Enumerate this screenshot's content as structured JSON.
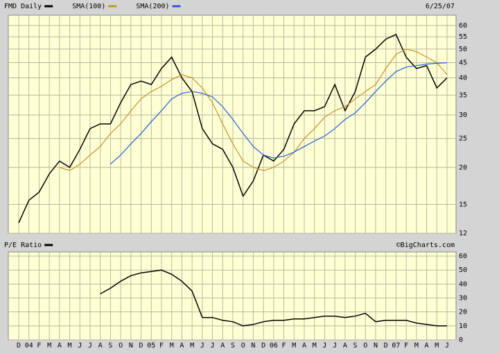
{
  "chart_data": [
    {
      "type": "line",
      "log_scale": true,
      "grid": true,
      "date": "6/25/07",
      "categories": [
        "D",
        "04",
        "F",
        "M",
        "A",
        "M",
        "J",
        "J",
        "A",
        "S",
        "O",
        "N",
        "D",
        "05",
        "F",
        "M",
        "A",
        "M",
        "J",
        "J",
        "A",
        "S",
        "O",
        "N",
        "D",
        "06",
        "F",
        "M",
        "A",
        "M",
        "J",
        "J",
        "A",
        "S",
        "O",
        "N",
        "D",
        "07",
        "F",
        "M",
        "A",
        "M",
        "J"
      ],
      "series": [
        {
          "name": "FMD Daily",
          "color": "#000000",
          "values": [
            13,
            15.5,
            16.5,
            19,
            21,
            20,
            23,
            27,
            28,
            28,
            33,
            38,
            39,
            38,
            43,
            47,
            40,
            36,
            27,
            24,
            23,
            20,
            16,
            18,
            22,
            21,
            23,
            28,
            31,
            31,
            32,
            38,
            31,
            36,
            47,
            50,
            54,
            56,
            47,
            43,
            44,
            37,
            40
          ]
        },
        {
          "name": "SMA(100)",
          "color": "#c8902c",
          "values": [
            null,
            null,
            null,
            null,
            20,
            19.5,
            20.5,
            22,
            23.5,
            26,
            28,
            31,
            34,
            36,
            37.5,
            39.5,
            41,
            40,
            37,
            33,
            28,
            24,
            21,
            20,
            19.5,
            20,
            21,
            22.5,
            25,
            27,
            29.5,
            31,
            32,
            34,
            36,
            38,
            43,
            48,
            50,
            49,
            47,
            45,
            41
          ]
        },
        {
          "name": "SMA(200)",
          "color": "#1f5fd6",
          "values": [
            null,
            null,
            null,
            null,
            null,
            null,
            null,
            null,
            null,
            20.5,
            22,
            24,
            26,
            28.5,
            31,
            34,
            35.5,
            36,
            35.5,
            34.5,
            32,
            29,
            26,
            23.5,
            22,
            21.5,
            21.8,
            22.5,
            23.5,
            24.5,
            25.5,
            27,
            29,
            30.5,
            33,
            36,
            39,
            42,
            43.5,
            44,
            44.5,
            44.8,
            45
          ]
        }
      ],
      "ylim": [
        12,
        65
      ],
      "yticks": [
        12,
        15,
        20,
        25,
        30,
        35,
        40,
        45,
        50,
        55,
        60
      ]
    },
    {
      "type": "line",
      "grid": true,
      "credit": "©BigCharts.com",
      "categories": [
        "D",
        "04",
        "F",
        "M",
        "A",
        "M",
        "J",
        "J",
        "A",
        "S",
        "O",
        "N",
        "D",
        "05",
        "F",
        "M",
        "A",
        "M",
        "J",
        "J",
        "A",
        "S",
        "O",
        "N",
        "D",
        "06",
        "F",
        "M",
        "A",
        "M",
        "J",
        "J",
        "A",
        "S",
        "O",
        "N",
        "D",
        "07",
        "F",
        "M",
        "A",
        "M",
        "J"
      ],
      "series": [
        {
          "name": "P/E Ratio",
          "color": "#000000",
          "values": [
            null,
            null,
            null,
            null,
            null,
            null,
            null,
            null,
            33,
            37,
            42,
            46,
            48,
            49,
            50,
            47,
            42,
            35,
            16,
            16,
            14,
            13,
            10,
            11,
            13,
            14,
            14,
            15,
            15,
            16,
            17,
            17,
            16,
            17,
            19,
            13,
            14,
            14,
            14,
            12,
            11,
            10,
            10
          ]
        }
      ],
      "ylim": [
        0,
        63
      ],
      "yticks": [
        0,
        10,
        20,
        30,
        40,
        50,
        60
      ]
    }
  ]
}
